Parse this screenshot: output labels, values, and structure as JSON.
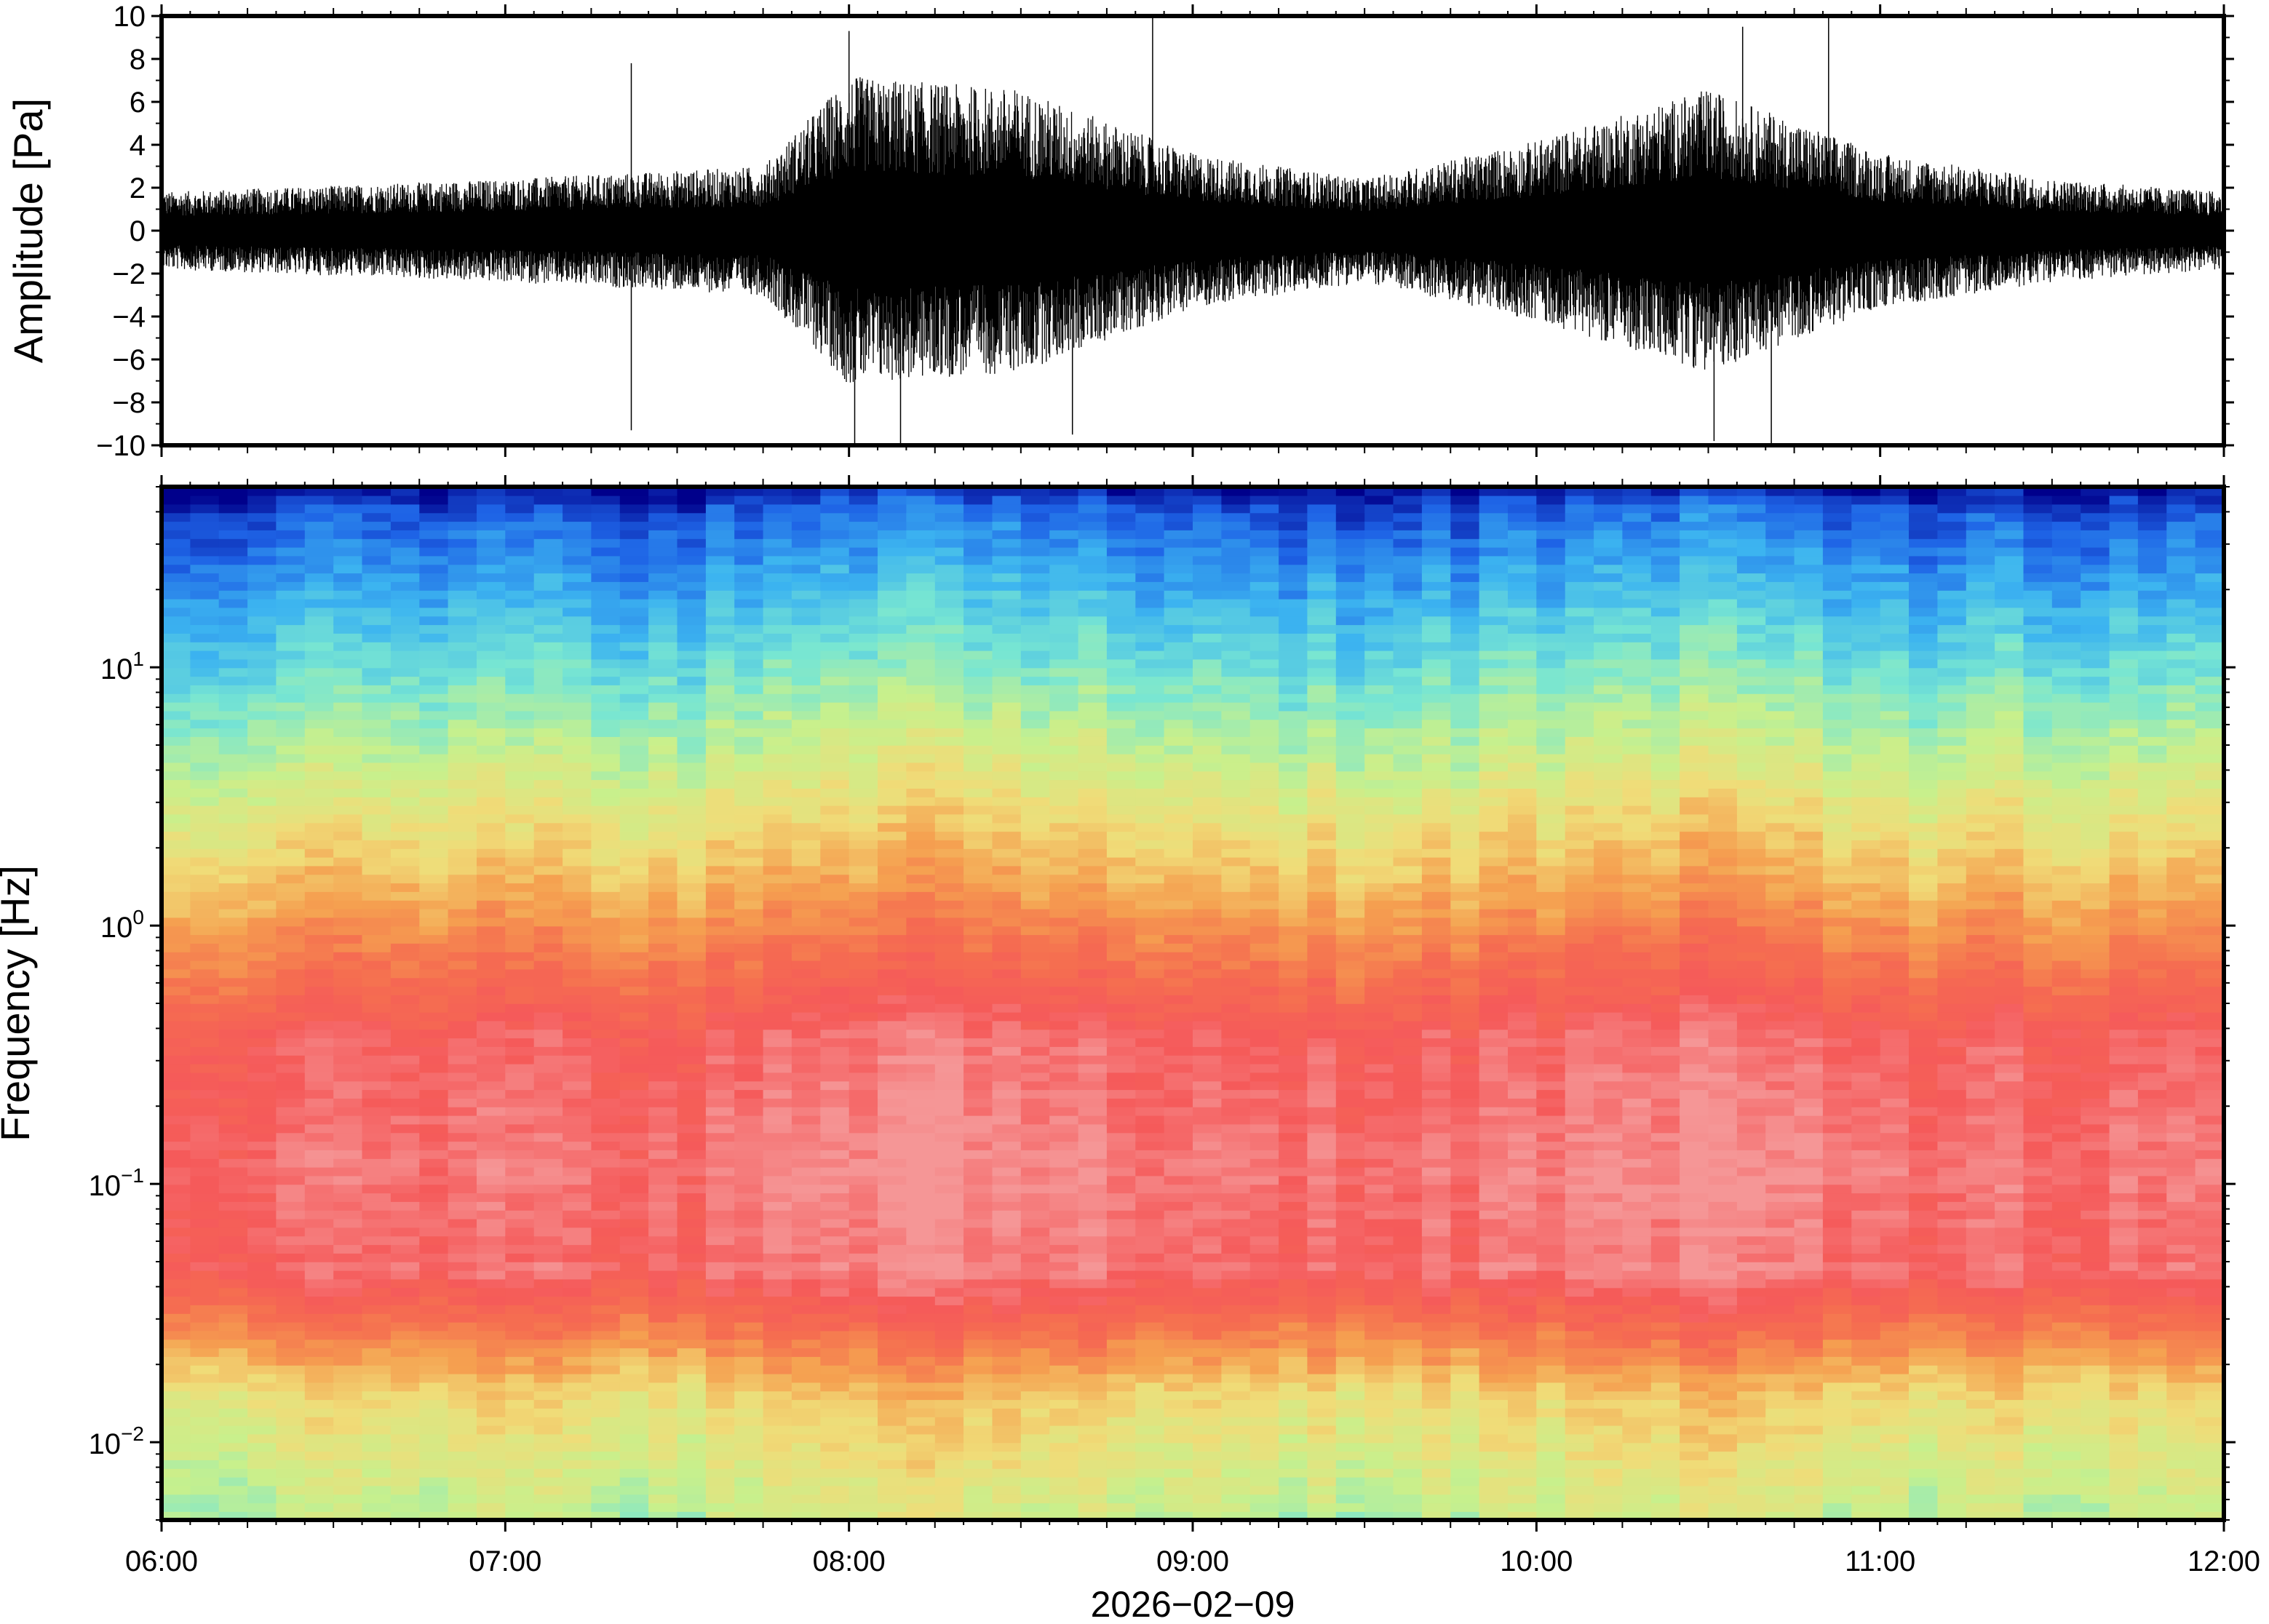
{
  "chart_data": [
    {
      "type": "line",
      "title": "",
      "ylabel": "Amplitude [Pa]",
      "xlabel": "",
      "x_range": [
        "06:00",
        "12:00"
      ],
      "ylim": [
        -10,
        10
      ],
      "y_ticks": [
        -10,
        -8,
        -6,
        -4,
        -2,
        0,
        2,
        4,
        6,
        8,
        10
      ],
      "y_tick_labels": [
        "−10",
        "−8",
        "−6",
        "−4",
        "−2",
        "0",
        "2",
        "4",
        "6",
        "8",
        "10"
      ],
      "envelope": {
        "x": [
          "06:00",
          "07:00",
          "07:45",
          "08:00",
          "08:30",
          "09:00",
          "09:30",
          "10:00",
          "10:30",
          "11:00",
          "11:30",
          "12:00"
        ],
        "y": [
          1.5,
          2.0,
          2.5,
          6.0,
          5.5,
          3.0,
          2.0,
          3.5,
          5.5,
          3.0,
          2.0,
          1.5
        ]
      },
      "peaks": [
        {
          "x": "07:22",
          "y": 7.8
        },
        {
          "x": "07:22",
          "y": -9.3
        },
        {
          "x": "08:00",
          "y": 9.3
        },
        {
          "x": "08:01",
          "y": -10
        },
        {
          "x": "08:09",
          "y": -10
        },
        {
          "x": "08:53",
          "y": 10
        },
        {
          "x": "08:39",
          "y": -9.5
        },
        {
          "x": "10:36",
          "y": 9.5
        },
        {
          "x": "10:41",
          "y": -10
        },
        {
          "x": "10:51",
          "y": 10
        },
        {
          "x": "10:31",
          "y": -9.8
        }
      ],
      "grid": false,
      "legend": "none"
    },
    {
      "type": "heatmap",
      "title": "",
      "ylabel": "Frequency [Hz]",
      "xlabel": "2026−02−09",
      "x_range": [
        "06:00",
        "12:00"
      ],
      "y_scale": "log",
      "ylim": [
        0.005,
        50
      ],
      "y_ticks": [
        0.01,
        0.1,
        1,
        10
      ],
      "y_tick_labels": [
        {
          "base": "10",
          "exp": "−2"
        },
        {
          "base": "10",
          "exp": "−1"
        },
        {
          "base": "10",
          "exp": "0"
        },
        {
          "base": "10",
          "exp": "1"
        }
      ],
      "x_ticks": [
        "06:00",
        "07:00",
        "08:00",
        "09:00",
        "10:00",
        "11:00",
        "12:00"
      ],
      "colormap": [
        "#00008b",
        "#1e63e6",
        "#3cb4f0",
        "#78e6d2",
        "#c8f08c",
        "#f0dc78",
        "#f5a050",
        "#f56e50",
        "#f55a5a",
        "#f59696"
      ],
      "grid": false,
      "legend": "none"
    }
  ]
}
